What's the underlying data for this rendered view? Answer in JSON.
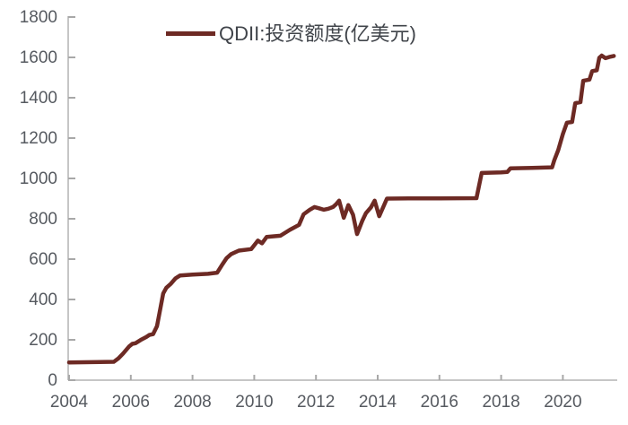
{
  "colors": {
    "accent": "#6d2a24",
    "axis_line": "#c6c6c6",
    "tick": "#a8a8a8",
    "axis_label": "#565a60",
    "legend_text": "#40444a",
    "background": "#ffffff"
  },
  "chart_data": {
    "type": "line",
    "title": "",
    "legend": {
      "position": "top-center",
      "entries": [
        "QDII:投资额度(亿美元)"
      ]
    },
    "x_axis": {
      "unit": "year",
      "range": [
        2004,
        2021.8
      ],
      "ticks": [
        "2004",
        "2006",
        "2008",
        "2010",
        "2012",
        "2014",
        "2016",
        "2018",
        "2020"
      ],
      "tick_years": [
        2004,
        2006,
        2008,
        2010,
        2012,
        2014,
        2016,
        2018,
        2020
      ]
    },
    "y_axis": {
      "range": [
        0,
        1800
      ],
      "tick_step": 200,
      "ticks": [
        0,
        200,
        400,
        600,
        800,
        1000,
        1200,
        1400,
        1600,
        1800
      ]
    },
    "grid": false,
    "series": [
      {
        "name": "QDII:投资额度(亿美元)",
        "color": "#6d2a24",
        "points": [
          [
            2004.0,
            88
          ],
          [
            2004.5,
            89
          ],
          [
            2005.0,
            90
          ],
          [
            2005.45,
            91
          ],
          [
            2005.6,
            108
          ],
          [
            2005.75,
            132
          ],
          [
            2005.95,
            168
          ],
          [
            2006.05,
            180
          ],
          [
            2006.15,
            183
          ],
          [
            2006.35,
            202
          ],
          [
            2006.5,
            214
          ],
          [
            2006.6,
            224
          ],
          [
            2006.72,
            228
          ],
          [
            2006.85,
            268
          ],
          [
            2006.95,
            350
          ],
          [
            2007.05,
            430
          ],
          [
            2007.15,
            458
          ],
          [
            2007.3,
            478
          ],
          [
            2007.45,
            505
          ],
          [
            2007.6,
            519
          ],
          [
            2008.0,
            523
          ],
          [
            2008.5,
            527
          ],
          [
            2008.8,
            533
          ],
          [
            2008.95,
            570
          ],
          [
            2009.1,
            604
          ],
          [
            2009.25,
            625
          ],
          [
            2009.5,
            642
          ],
          [
            2009.9,
            650
          ],
          [
            2010.05,
            678
          ],
          [
            2010.12,
            692
          ],
          [
            2010.25,
            678
          ],
          [
            2010.4,
            710
          ],
          [
            2010.85,
            716
          ],
          [
            2011.15,
            745
          ],
          [
            2011.45,
            770
          ],
          [
            2011.6,
            822
          ],
          [
            2011.8,
            845
          ],
          [
            2011.95,
            858
          ],
          [
            2012.1,
            852
          ],
          [
            2012.25,
            845
          ],
          [
            2012.4,
            850
          ],
          [
            2012.55,
            858
          ],
          [
            2012.65,
            872
          ],
          [
            2012.75,
            890
          ],
          [
            2012.9,
            805
          ],
          [
            2013.05,
            868
          ],
          [
            2013.2,
            820
          ],
          [
            2013.33,
            724
          ],
          [
            2013.5,
            790
          ],
          [
            2013.62,
            828
          ],
          [
            2013.78,
            856
          ],
          [
            2013.9,
            890
          ],
          [
            2014.05,
            813
          ],
          [
            2014.3,
            900
          ],
          [
            2015.0,
            901
          ],
          [
            2016.0,
            901
          ],
          [
            2017.2,
            902
          ],
          [
            2017.37,
            1027
          ],
          [
            2018.0,
            1030
          ],
          [
            2018.2,
            1032
          ],
          [
            2018.3,
            1050
          ],
          [
            2019.0,
            1052
          ],
          [
            2019.65,
            1055
          ],
          [
            2019.72,
            1090
          ],
          [
            2019.85,
            1140
          ],
          [
            2020.0,
            1220
          ],
          [
            2020.13,
            1276
          ],
          [
            2020.3,
            1280
          ],
          [
            2020.4,
            1373
          ],
          [
            2020.57,
            1378
          ],
          [
            2020.66,
            1484
          ],
          [
            2020.86,
            1490
          ],
          [
            2020.95,
            1532
          ],
          [
            2021.1,
            1536
          ],
          [
            2021.18,
            1598
          ],
          [
            2021.26,
            1609
          ],
          [
            2021.38,
            1596
          ],
          [
            2021.5,
            1602
          ],
          [
            2021.65,
            1607
          ]
        ]
      }
    ]
  }
}
